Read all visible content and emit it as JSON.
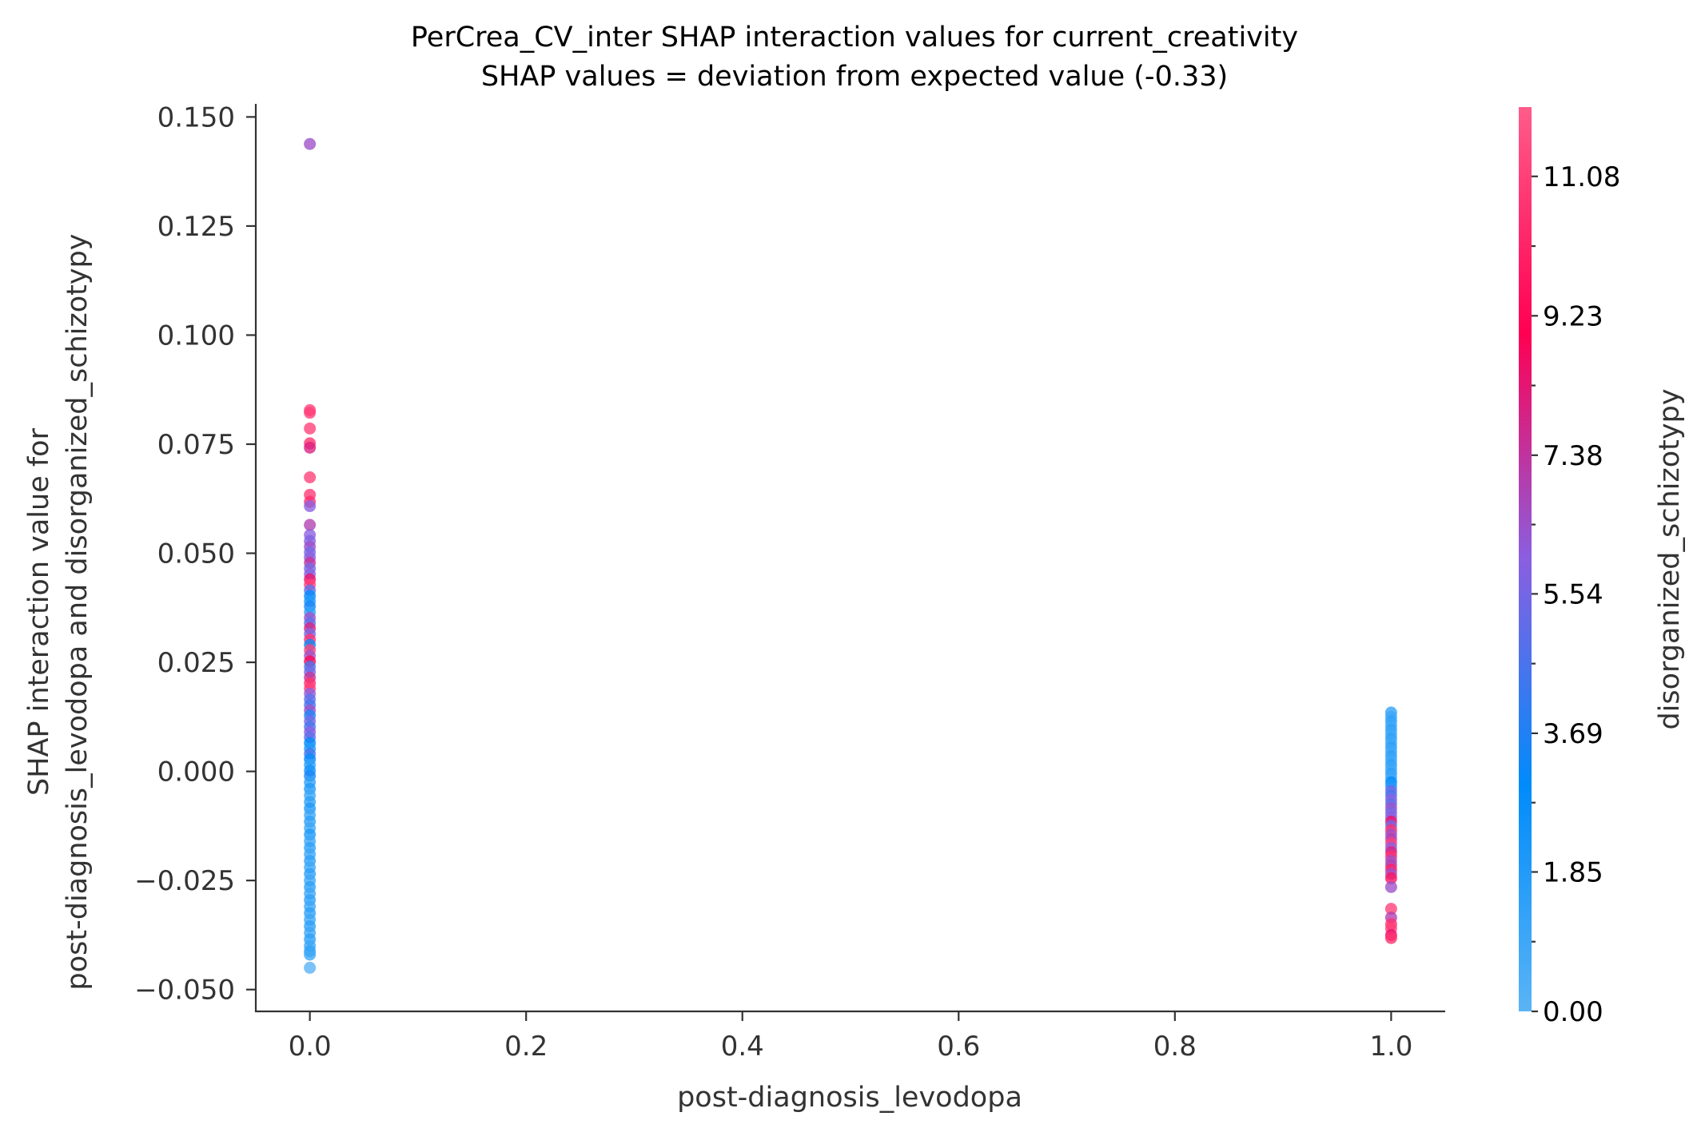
{
  "chart_data": {
    "type": "scatter",
    "title": "PerCrea_CV_inter SHAP interaction values for current_creativity",
    "subtitle": "SHAP values = deviation from expected value (-0.33)",
    "xlabel": "post-diagnosis_levodopa",
    "ylabel_lines": [
      "SHAP interaction value for",
      "post-diagnosis_levodopa and disorganized_schizotypy"
    ],
    "xlim": [
      -0.05,
      1.05
    ],
    "ylim": [
      -0.055,
      0.153
    ],
    "x_ticks": [
      0.0,
      0.2,
      0.4,
      0.6,
      0.8,
      1.0
    ],
    "x_tick_labels": [
      "0.0",
      "0.2",
      "0.4",
      "0.6",
      "0.8",
      "1.0"
    ],
    "y_ticks": [
      -0.05,
      -0.025,
      0.0,
      0.025,
      0.05,
      0.075,
      0.1,
      0.125,
      0.15
    ],
    "y_tick_labels": [
      "−0.050",
      "−0.025",
      "0.000",
      "0.025",
      "0.050",
      "0.075",
      "0.100",
      "0.125",
      "0.150"
    ],
    "grid": false,
    "colorbar": {
      "label": "disorganized_schizotypy",
      "range": [
        0.0,
        12.0
      ],
      "tick_values": [
        0.0,
        1.85,
        3.69,
        5.54,
        7.38,
        9.23,
        11.08
      ],
      "tick_labels": [
        "0.00",
        "1.85",
        "3.69",
        "5.54",
        "7.38",
        "9.23",
        "11.08"
      ],
      "colors": [
        "#5ab4f5",
        "#008bfb",
        "#8a5fe0",
        "#ff0052",
        "#ff5c8a"
      ]
    },
    "series": [
      {
        "x": 0.0,
        "points": [
          [
            0.1438,
            6.5
          ],
          [
            0.0828,
            11.0
          ],
          [
            0.0822,
            11.0
          ],
          [
            0.0786,
            11.0
          ],
          [
            0.0752,
            10.5
          ],
          [
            0.0742,
            8.0
          ],
          [
            0.0674,
            11.0
          ],
          [
            0.0634,
            10.8
          ],
          [
            0.0618,
            10.5
          ],
          [
            0.0608,
            6.0
          ],
          [
            0.0565,
            7.0
          ],
          [
            0.0542,
            6.0
          ],
          [
            0.0528,
            5.8
          ],
          [
            0.0515,
            6.5
          ],
          [
            0.0502,
            5.5
          ],
          [
            0.049,
            6.0
          ],
          [
            0.0478,
            7.5
          ],
          [
            0.0465,
            5.5
          ],
          [
            0.0452,
            6.0
          ],
          [
            0.044,
            8.5
          ],
          [
            0.0428,
            11.0
          ],
          [
            0.0415,
            5.0
          ],
          [
            0.0402,
            3.0
          ],
          [
            0.039,
            2.0
          ],
          [
            0.0378,
            3.5
          ],
          [
            0.0365,
            1.5
          ],
          [
            0.0352,
            6.5
          ],
          [
            0.034,
            5.0
          ],
          [
            0.0328,
            8.0
          ],
          [
            0.0315,
            5.5
          ],
          [
            0.0302,
            10.5
          ],
          [
            0.029,
            3.0
          ],
          [
            0.0278,
            11.0
          ],
          [
            0.0265,
            6.5
          ],
          [
            0.0252,
            9.0
          ],
          [
            0.024,
            4.5
          ],
          [
            0.0228,
            5.5
          ],
          [
            0.0215,
            7.5
          ],
          [
            0.0202,
            10.5
          ],
          [
            0.019,
            11.0
          ],
          [
            0.0178,
            6.0
          ],
          [
            0.0165,
            5.0
          ],
          [
            0.0152,
            4.5
          ],
          [
            0.014,
            6.5
          ],
          [
            0.0128,
            3.5
          ],
          [
            0.0115,
            5.5
          ],
          [
            0.0102,
            4.5
          ],
          [
            0.009,
            6.0
          ],
          [
            0.0078,
            5.0
          ],
          [
            0.0065,
            3.0
          ],
          [
            0.0052,
            2.0
          ],
          [
            0.004,
            4.5
          ],
          [
            0.0028,
            3.0
          ],
          [
            0.0015,
            1.5
          ],
          [
            0.0002,
            2.5
          ],
          [
            -0.001,
            3.5
          ],
          [
            -0.0025,
            1.5
          ],
          [
            -0.004,
            2.0
          ],
          [
            -0.0055,
            1.0
          ],
          [
            -0.007,
            1.5
          ],
          [
            -0.0085,
            2.0
          ],
          [
            -0.01,
            1.0
          ],
          [
            -0.0115,
            1.5
          ],
          [
            -0.013,
            1.0
          ],
          [
            -0.0145,
            2.0
          ],
          [
            -0.016,
            1.0
          ],
          [
            -0.0175,
            1.5
          ],
          [
            -0.019,
            1.0
          ],
          [
            -0.0205,
            1.5
          ],
          [
            -0.022,
            1.0
          ],
          [
            -0.0235,
            1.5
          ],
          [
            -0.025,
            1.0
          ],
          [
            -0.0265,
            1.5
          ],
          [
            -0.028,
            1.0
          ],
          [
            -0.0295,
            1.5
          ],
          [
            -0.031,
            1.0
          ],
          [
            -0.0325,
            1.5
          ],
          [
            -0.034,
            1.0
          ],
          [
            -0.0355,
            1.5
          ],
          [
            -0.037,
            1.0
          ],
          [
            -0.0385,
            1.5
          ],
          [
            -0.04,
            1.0
          ],
          [
            -0.0412,
            1.5
          ],
          [
            -0.042,
            1.0
          ],
          [
            -0.045,
            0.2
          ]
        ]
      },
      {
        "x": 1.0,
        "points": [
          [
            0.0135,
            1.5
          ],
          [
            0.0125,
            1.0
          ],
          [
            0.0115,
            1.5
          ],
          [
            0.0105,
            1.0
          ],
          [
            0.0095,
            1.5
          ],
          [
            0.0085,
            1.0
          ],
          [
            0.0075,
            1.5
          ],
          [
            0.0065,
            1.0
          ],
          [
            0.0055,
            1.5
          ],
          [
            0.0045,
            1.0
          ],
          [
            0.0035,
            1.5
          ],
          [
            0.0025,
            1.0
          ],
          [
            0.0015,
            1.5
          ],
          [
            0.0005,
            1.0
          ],
          [
            -0.0005,
            1.5
          ],
          [
            -0.0015,
            1.0
          ],
          [
            -0.0025,
            3.0
          ],
          [
            -0.0035,
            2.0
          ],
          [
            -0.0045,
            5.5
          ],
          [
            -0.0055,
            4.5
          ],
          [
            -0.0065,
            6.0
          ],
          [
            -0.0075,
            5.0
          ],
          [
            -0.0085,
            6.5
          ],
          [
            -0.0095,
            5.5
          ],
          [
            -0.0105,
            6.0
          ],
          [
            -0.0115,
            8.5
          ],
          [
            -0.0125,
            5.5
          ],
          [
            -0.0135,
            10.5
          ],
          [
            -0.0145,
            6.5
          ],
          [
            -0.0155,
            7.0
          ],
          [
            -0.0165,
            11.0
          ],
          [
            -0.0175,
            6.0
          ],
          [
            -0.0185,
            8.0
          ],
          [
            -0.0195,
            10.5
          ],
          [
            -0.0205,
            6.5
          ],
          [
            -0.0215,
            7.0
          ],
          [
            -0.0225,
            10.0
          ],
          [
            -0.0235,
            6.5
          ],
          [
            -0.0245,
            9.5
          ],
          [
            -0.0265,
            6.5
          ],
          [
            -0.0315,
            11.0
          ],
          [
            -0.0335,
            7.0
          ],
          [
            -0.035,
            10.5
          ],
          [
            -0.036,
            11.0
          ],
          [
            -0.0375,
            8.5
          ],
          [
            -0.0382,
            10.5
          ]
        ]
      }
    ]
  }
}
